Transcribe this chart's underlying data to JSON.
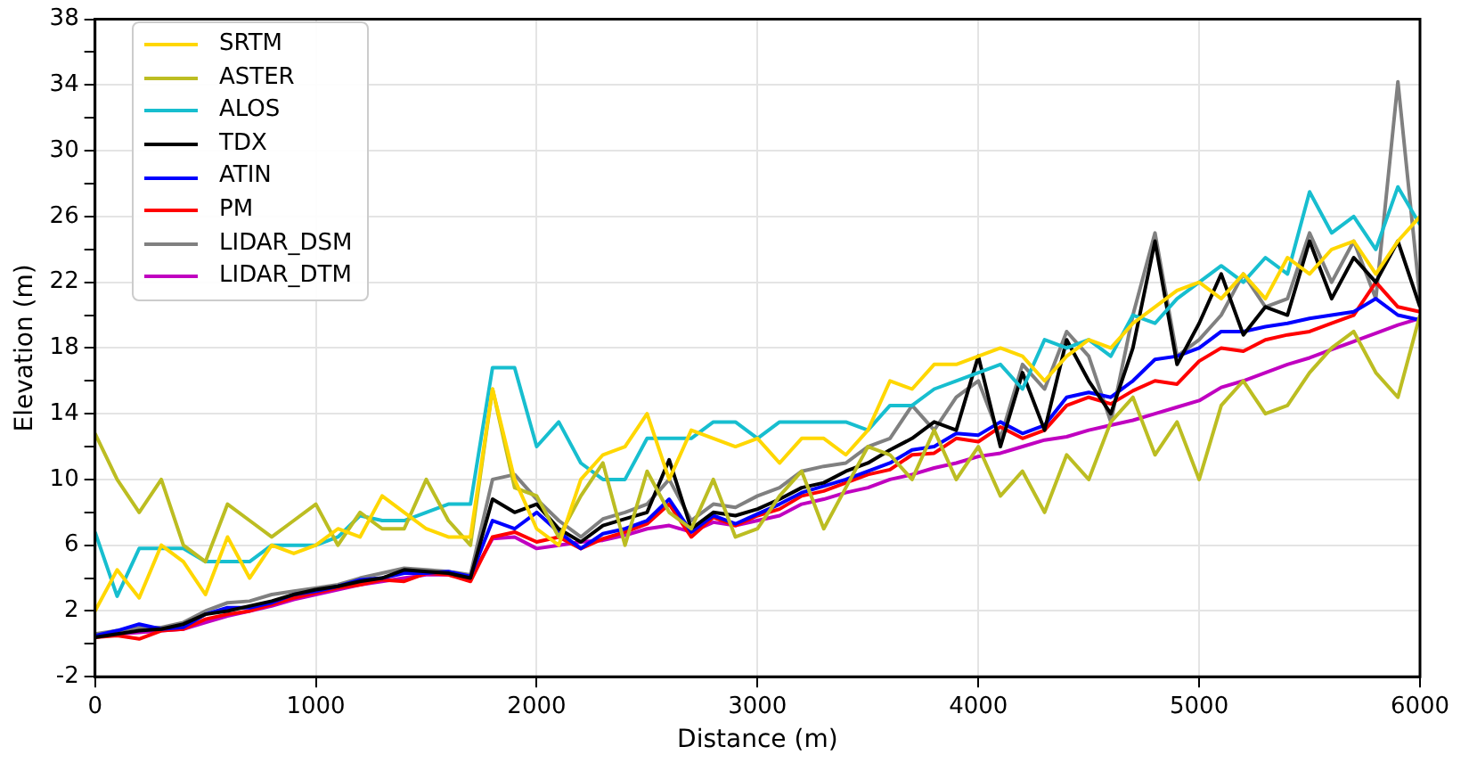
{
  "chart_data": {
    "type": "line",
    "xlabel": "Distance (m)",
    "ylabel": "Elevation (m)",
    "x": [
      0,
      100,
      200,
      300,
      400,
      500,
      600,
      700,
      800,
      900,
      1000,
      1100,
      1200,
      1300,
      1400,
      1500,
      1600,
      1700,
      1800,
      1900,
      2000,
      2100,
      2200,
      2300,
      2400,
      2500,
      2600,
      2700,
      2800,
      2900,
      3000,
      3100,
      3200,
      3300,
      3400,
      3500,
      3600,
      3700,
      3800,
      3900,
      4000,
      4100,
      4200,
      4300,
      4400,
      4500,
      4600,
      4700,
      4800,
      4900,
      5000,
      5100,
      5200,
      5300,
      5400,
      5500,
      5600,
      5700,
      5800,
      5900,
      6000
    ],
    "xlim": [
      0,
      6000
    ],
    "xticks": [
      0,
      1000,
      2000,
      3000,
      4000,
      5000,
      6000
    ],
    "ylim": [
      -2,
      38
    ],
    "yticks": [
      -2,
      {
        "value": 0,
        "label": null
      },
      2,
      {
        "value": 4,
        "label": null
      },
      6,
      {
        "value": 8,
        "label": null
      },
      10,
      {
        "value": 12,
        "label": null
      },
      14,
      {
        "value": 16,
        "label": null
      },
      18,
      {
        "value": 20,
        "label": null
      },
      22,
      {
        "value": 24,
        "label": null
      },
      26,
      {
        "value": 28,
        "label": null
      },
      30,
      {
        "value": 32,
        "label": null
      },
      34,
      {
        "value": 36,
        "label": null
      },
      38
    ],
    "grid": true,
    "legend": "top left",
    "series": [
      {
        "name": "SRTM",
        "color": "#ffd700",
        "values": [
          2.0,
          4.5,
          2.8,
          6.0,
          5.0,
          3.0,
          6.5,
          4.0,
          6.0,
          5.5,
          6.0,
          7.0,
          6.5,
          9.0,
          8.0,
          7.0,
          6.5,
          6.5,
          15.5,
          10.0,
          7.0,
          6.0,
          10.0,
          11.5,
          12.0,
          14.0,
          10.0,
          13.0,
          12.5,
          12.0,
          12.5,
          11.0,
          12.5,
          12.5,
          11.5,
          13.0,
          16.0,
          15.5,
          17.0,
          17.0,
          17.5,
          18.0,
          17.5,
          16.0,
          17.5,
          18.5,
          18.0,
          19.5,
          20.5,
          21.5,
          22.0,
          21.0,
          22.5,
          21.0,
          23.5,
          22.5,
          24.0,
          24.5,
          22.5,
          24.5,
          26.0
        ]
      },
      {
        "name": "ASTER",
        "color": "#bcbd22",
        "values": [
          12.8,
          10.0,
          8.0,
          10.0,
          6.0,
          5.0,
          8.5,
          7.5,
          6.5,
          7.5,
          8.5,
          6.0,
          8.0,
          7.0,
          7.0,
          10.0,
          7.5,
          6.0,
          15.5,
          9.5,
          9.0,
          6.5,
          9.0,
          11.0,
          6.0,
          10.5,
          8.0,
          7.0,
          10.0,
          6.5,
          7.0,
          9.0,
          10.5,
          7.0,
          9.5,
          12.0,
          11.5,
          10.0,
          13.0,
          10.0,
          12.0,
          9.0,
          10.5,
          8.0,
          11.5,
          10.0,
          13.5,
          15.0,
          11.5,
          13.5,
          10.0,
          14.5,
          16.0,
          14.0,
          14.5,
          16.5,
          18.0,
          19.0,
          16.5,
          15.0,
          20.0
        ]
      },
      {
        "name": "ALOS",
        "color": "#17becf",
        "values": [
          6.8,
          2.9,
          5.8,
          5.8,
          5.8,
          5.0,
          5.0,
          5.0,
          6.0,
          6.0,
          6.0,
          6.5,
          7.8,
          7.5,
          7.5,
          8.0,
          8.5,
          8.5,
          16.8,
          16.8,
          12.0,
          13.5,
          11.0,
          10.0,
          10.0,
          12.5,
          12.5,
          12.5,
          13.5,
          13.5,
          12.5,
          13.5,
          13.5,
          13.5,
          13.5,
          13.0,
          14.5,
          14.5,
          15.5,
          16.0,
          16.5,
          17.0,
          15.5,
          18.5,
          18.0,
          18.5,
          17.5,
          20.0,
          19.5,
          21.0,
          22.0,
          23.0,
          22.0,
          23.5,
          22.5,
          27.5,
          25.0,
          26.0,
          24.0,
          27.8,
          25.5
        ]
      },
      {
        "name": "TDX",
        "color": "#000000",
        "values": [
          0.4,
          0.6,
          0.8,
          0.9,
          1.2,
          1.8,
          2.0,
          2.3,
          2.6,
          3.0,
          3.3,
          3.5,
          3.8,
          4.0,
          4.5,
          4.4,
          4.3,
          4.0,
          8.8,
          8.0,
          8.5,
          7.0,
          6.2,
          7.2,
          7.6,
          8.0,
          11.2,
          7.0,
          8.0,
          7.8,
          8.2,
          8.8,
          9.5,
          9.8,
          10.5,
          11.0,
          11.8,
          12.5,
          13.5,
          13.0,
          17.5,
          12.0,
          16.5,
          13.0,
          18.5,
          16.0,
          14.0,
          18.0,
          24.5,
          17.0,
          19.5,
          22.5,
          18.8,
          20.5,
          20.0,
          24.5,
          21.0,
          23.5,
          22.0,
          24.5,
          20.5
        ]
      },
      {
        "name": "ATIN",
        "color": "#0000ff",
        "values": [
          0.5,
          0.8,
          1.2,
          0.9,
          1.0,
          1.8,
          2.2,
          2.2,
          2.5,
          3.0,
          3.2,
          3.5,
          3.9,
          4.0,
          4.3,
          4.3,
          4.4,
          4.1,
          7.5,
          7.0,
          8.0,
          6.8,
          5.8,
          6.7,
          7.0,
          7.5,
          8.8,
          6.8,
          7.8,
          7.3,
          7.9,
          8.5,
          9.2,
          9.6,
          10.0,
          10.5,
          11.0,
          11.8,
          12.0,
          12.8,
          12.7,
          13.5,
          12.8,
          13.3,
          15.0,
          15.3,
          15.0,
          16.0,
          17.3,
          17.5,
          18.0,
          19.0,
          19.0,
          19.3,
          19.5,
          19.8,
          20.0,
          20.2,
          21.0,
          20.0,
          19.7
        ]
      },
      {
        "name": "PM",
        "color": "#ff0000",
        "values": [
          0.4,
          0.5,
          0.3,
          0.8,
          0.9,
          1.5,
          1.8,
          2.0,
          2.4,
          2.8,
          3.1,
          3.4,
          3.6,
          3.9,
          3.8,
          4.3,
          4.2,
          3.8,
          6.5,
          6.8,
          6.2,
          6.5,
          5.8,
          6.4,
          6.8,
          7.3,
          8.5,
          6.5,
          7.7,
          7.2,
          7.8,
          8.2,
          9.0,
          9.3,
          9.8,
          10.3,
          10.6,
          11.5,
          11.6,
          12.5,
          12.3,
          13.2,
          12.5,
          13.0,
          14.5,
          15.0,
          14.6,
          15.4,
          16.0,
          15.8,
          17.2,
          18.0,
          17.8,
          18.5,
          18.8,
          19.0,
          19.5,
          20.0,
          22.0,
          20.5,
          20.2
        ]
      },
      {
        "name": "LIDAR_DSM",
        "color": "#808080",
        "values": [
          0.6,
          0.8,
          1.0,
          1.0,
          1.3,
          2.0,
          2.5,
          2.6,
          3.0,
          3.2,
          3.4,
          3.6,
          4.0,
          4.3,
          4.6,
          4.5,
          4.4,
          4.2,
          10.0,
          10.3,
          8.8,
          7.5,
          6.5,
          7.6,
          8.0,
          8.5,
          10.0,
          7.5,
          8.5,
          8.3,
          9.0,
          9.5,
          10.5,
          10.8,
          11.0,
          12.0,
          12.5,
          14.5,
          13.0,
          15.0,
          16.0,
          12.5,
          17.0,
          15.5,
          19.0,
          17.5,
          13.5,
          20.0,
          25.0,
          17.5,
          18.5,
          20.0,
          22.5,
          20.5,
          21.0,
          25.0,
          22.0,
          24.5,
          21.0,
          34.2,
          21.0
        ]
      },
      {
        "name": "LIDAR_DTM",
        "color": "#c000c0",
        "values": [
          0.5,
          0.6,
          0.7,
          0.8,
          0.9,
          1.3,
          1.7,
          2.0,
          2.3,
          2.7,
          3.0,
          3.3,
          3.6,
          3.8,
          4.0,
          4.2,
          4.2,
          4.0,
          6.4,
          6.5,
          5.8,
          6.0,
          6.2,
          6.3,
          6.6,
          7.0,
          7.2,
          6.8,
          7.4,
          7.2,
          7.5,
          7.8,
          8.5,
          8.8,
          9.2,
          9.5,
          10.0,
          10.3,
          10.7,
          11.0,
          11.4,
          11.6,
          12.0,
          12.4,
          12.6,
          13.0,
          13.3,
          13.6,
          14.0,
          14.4,
          14.8,
          15.6,
          16.0,
          16.5,
          17.0,
          17.4,
          17.9,
          18.4,
          18.9,
          19.4,
          19.8
        ]
      }
    ]
  }
}
